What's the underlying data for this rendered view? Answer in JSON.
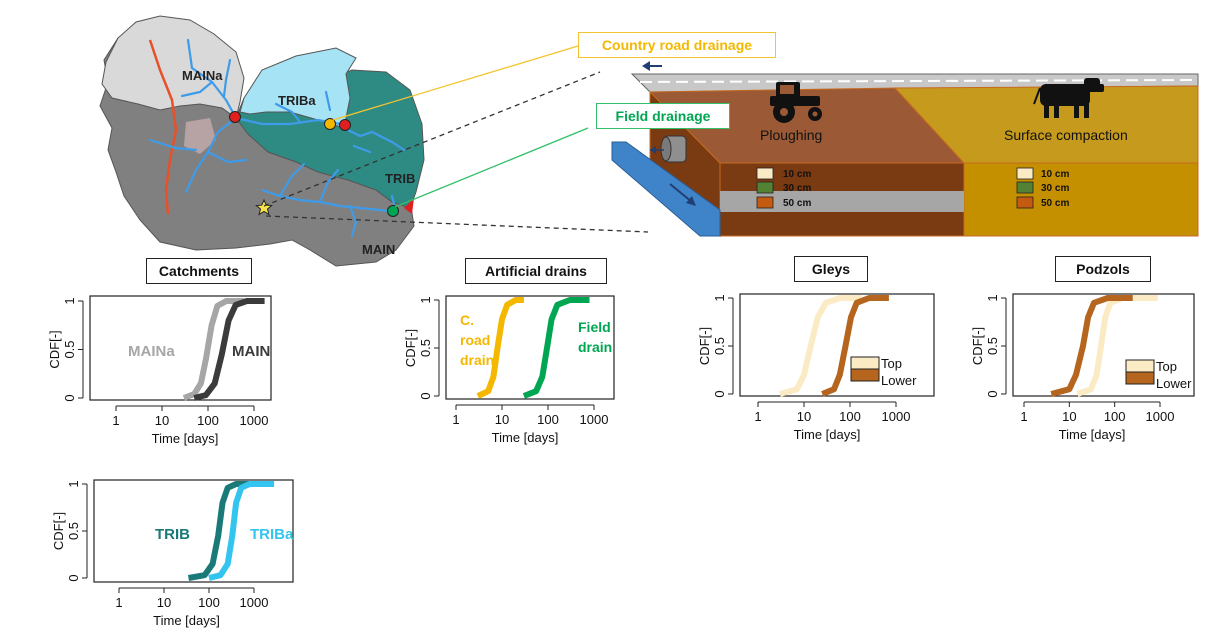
{
  "map": {
    "labels": {
      "maina": "MAINa",
      "triba": "TRIBa",
      "trib": "TRIB",
      "main": "MAIN"
    }
  },
  "callouts": {
    "country_road": "Country road drainage",
    "field": "Field drainage"
  },
  "block": {
    "ploughing": "Ploughing",
    "surface_compaction": "Surface compaction",
    "depths": [
      "10 cm",
      "30 cm",
      "50 cm"
    ]
  },
  "colors": {
    "river": "#3f9be8",
    "road": "#e8502a",
    "maina": "#d9d9d9",
    "main": "#808080",
    "trib": "#2e8b84",
    "triba": "#a6e3f5",
    "country_road": "#f4b800",
    "field": "#00a651",
    "ploughed": "#9b5a35",
    "compacted": "#c59a1d",
    "top_layer": "#fbebc5",
    "lower_layer": "#b5651d"
  },
  "panels": {
    "catchments": {
      "label": "Catchments",
      "chart_data": {
        "type": "line",
        "xscale": "log",
        "xlabel": "Time [days]",
        "ylabel": "CDF[-]",
        "xticks": [
          "1",
          "10",
          "100",
          "1000"
        ],
        "yticks": [
          "0",
          "0.5",
          "1"
        ],
        "series": [
          {
            "name": "MAINa",
            "color": "#a6a6a6",
            "x": [
              30,
              50,
              70,
              90,
              120,
              160,
              250,
              600
            ],
            "y": [
              0,
              0.04,
              0.15,
              0.4,
              0.75,
              0.95,
              1,
              1
            ]
          },
          {
            "name": "MAIN",
            "color": "#3b3b3b",
            "x": [
              50,
              90,
              140,
              200,
              280,
              400,
              700,
              1700
            ],
            "y": [
              0,
              0.03,
              0.15,
              0.45,
              0.8,
              0.96,
              1,
              1
            ]
          }
        ]
      }
    },
    "trib": {
      "chart_data": {
        "type": "line",
        "xscale": "log",
        "xlabel": "Time [days]",
        "ylabel": "CDF[-]",
        "xticks": [
          "1",
          "10",
          "100",
          "1000"
        ],
        "yticks": [
          "0",
          "0.5",
          "1"
        ],
        "series": [
          {
            "name": "TRIB",
            "color": "#1a7a78",
            "x": [
              35,
              80,
              120,
              160,
              200,
              260,
              400,
              900
            ],
            "y": [
              0,
              0.03,
              0.15,
              0.45,
              0.8,
              0.96,
              1,
              1
            ]
          },
          {
            "name": "TRIBa",
            "color": "#33c5ef",
            "x": [
              100,
              180,
              260,
              330,
              400,
              520,
              800,
              2800
            ],
            "y": [
              0,
              0.03,
              0.15,
              0.45,
              0.8,
              0.96,
              1,
              1
            ]
          }
        ]
      }
    },
    "drains": {
      "label": "Artificial drains",
      "chart_data": {
        "type": "line",
        "xscale": "log",
        "xlabel": "Time [days]",
        "ylabel": "CDF[-]",
        "xticks": [
          "1",
          "10",
          "100",
          "1000"
        ],
        "yticks": [
          "0",
          "0.5",
          "1"
        ],
        "series": [
          {
            "name": "C. road drain",
            "color": "#f4b800",
            "x": [
              3,
              5,
              6.5,
              8,
              10,
              13,
              20,
              30
            ],
            "y": [
              0,
              0.05,
              0.2,
              0.5,
              0.8,
              0.95,
              1,
              1
            ]
          },
          {
            "name": "Field drain",
            "color": "#00a651",
            "x": [
              30,
              55,
              75,
              95,
              120,
              160,
              300,
              800
            ],
            "y": [
              0,
              0.05,
              0.2,
              0.5,
              0.8,
              0.95,
              1,
              1
            ]
          }
        ],
        "annotations": {
          "road": [
            "C.",
            "road",
            "drain"
          ],
          "field": [
            "Field",
            "drain"
          ]
        }
      }
    },
    "gleys": {
      "label": "Gleys",
      "chart_data": {
        "type": "line",
        "xscale": "log",
        "xlabel": "Time [days]",
        "ylabel": "CDF[-]",
        "xticks": [
          "1",
          "10",
          "100",
          "1000"
        ],
        "yticks": [
          "0",
          "0.5",
          "1"
        ],
        "legend_position": "bottom-right",
        "series": [
          {
            "name": "Top",
            "color": "#fbebc5",
            "x": [
              3,
              7,
              10,
              14,
              20,
              30,
              60,
              180
            ],
            "y": [
              0,
              0.05,
              0.2,
              0.5,
              0.8,
              0.95,
              1,
              1
            ]
          },
          {
            "name": "Lower",
            "color": "#b5651d",
            "x": [
              25,
              45,
              60,
              80,
              105,
              140,
              260,
              700
            ],
            "y": [
              0,
              0.05,
              0.2,
              0.5,
              0.8,
              0.95,
              1,
              1
            ]
          }
        ]
      }
    },
    "podzols": {
      "label": "Podzols",
      "chart_data": {
        "type": "line",
        "xscale": "log",
        "xlabel": "Time [days]",
        "ylabel": "CDF[-]",
        "xticks": [
          "1",
          "10",
          "100",
          "1000"
        ],
        "yticks": [
          "0",
          "0.5",
          "1"
        ],
        "legend_position": "bottom-right",
        "series": [
          {
            "name": "Top",
            "color": "#fbebc5",
            "x": [
              15,
              30,
              40,
              50,
              62,
              80,
              150,
              900
            ],
            "y": [
              0,
              0.05,
              0.2,
              0.5,
              0.8,
              0.95,
              1,
              1
            ]
          },
          {
            "name": "Lower",
            "color": "#b5651d",
            "x": [
              4,
              10,
              14,
              20,
              26,
              35,
              70,
              250
            ],
            "y": [
              0,
              0.05,
              0.2,
              0.5,
              0.8,
              0.95,
              1,
              1
            ]
          }
        ]
      }
    }
  }
}
